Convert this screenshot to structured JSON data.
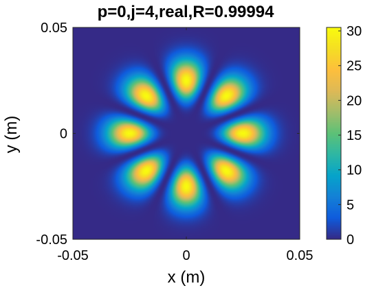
{
  "chart_data": {
    "type": "heatmap",
    "title": "p=0,j=4,real,R=0.99994",
    "xlabel": "x (m)",
    "ylabel": "y (m)",
    "xlim": [
      -0.05,
      0.05
    ],
    "ylim": [
      -0.05,
      0.05
    ],
    "xticks": [
      -0.05,
      0,
      0.05
    ],
    "xtick_labels": [
      "-0.05",
      "0",
      "0.05"
    ],
    "yticks": [
      -0.05,
      0,
      0.05
    ],
    "ytick_labels": [
      "-0.05",
      "0",
      "0.05"
    ],
    "colorbar": {
      "range": [
        0,
        30.5
      ],
      "ticks": [
        0,
        5,
        10,
        15,
        20,
        25,
        30
      ],
      "tick_labels": [
        "0",
        "5",
        "10",
        "15",
        "20",
        "25",
        "30"
      ],
      "colormap": "parula"
    },
    "field": {
      "description": "8-lobed intensity pattern",
      "lobes": 8,
      "peak_value": 30.5,
      "peak_radius_m": 0.025,
      "lobe_angles_deg": [
        0,
        45,
        90,
        135,
        180,
        225,
        270,
        315
      ]
    },
    "grid": false
  },
  "colors": {
    "background": "#ffffff",
    "axes_edge": "#262626",
    "colormap_low": "#352a87",
    "colormap_high": "#f9fb0e"
  }
}
